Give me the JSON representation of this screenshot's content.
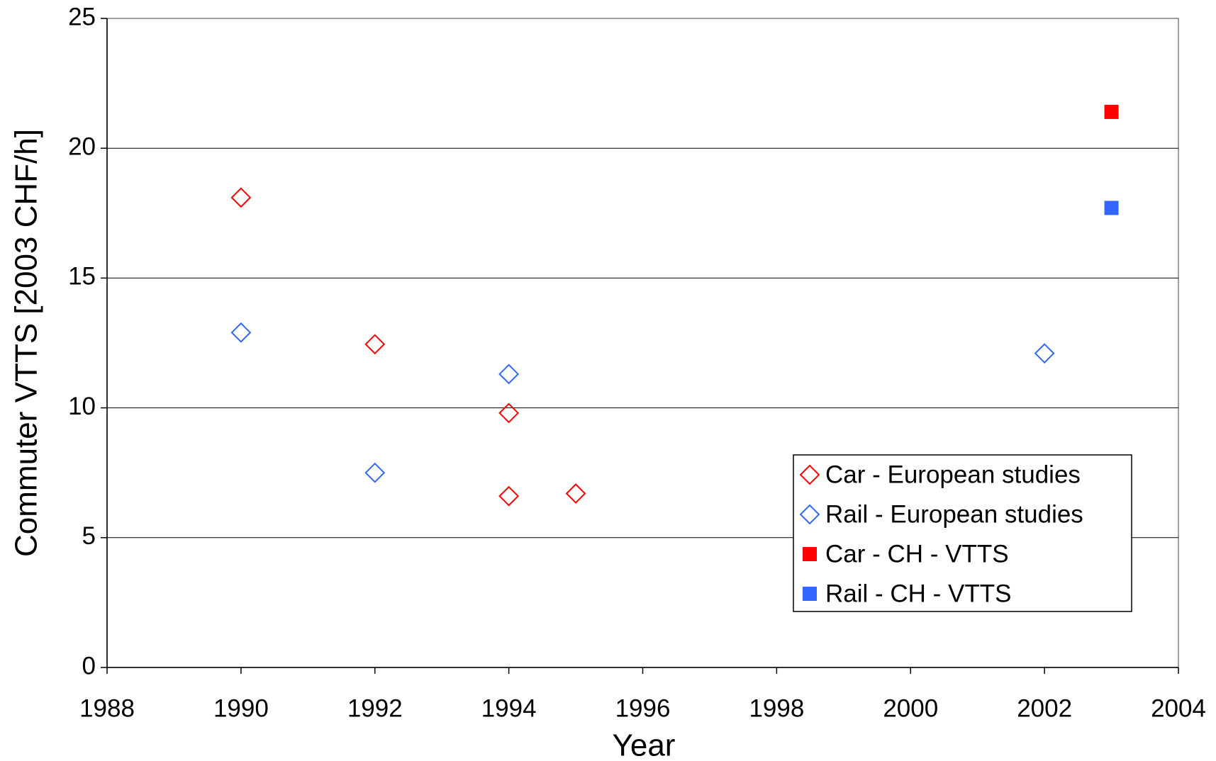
{
  "chart_data": {
    "type": "scatter",
    "x_label": "Year",
    "y_label": "Commuter VTTS [2003 CHF/h]",
    "xlim": [
      1988,
      2004
    ],
    "xticks": [
      1988,
      1990,
      1992,
      1994,
      1996,
      1998,
      2000,
      2002,
      2004
    ],
    "ylim": [
      0,
      25
    ],
    "yticks": [
      0,
      5,
      10,
      15,
      20,
      25
    ],
    "grid": true,
    "legend": "lower right",
    "series": [
      {
        "name": "Car - European studies",
        "color": "#ff0000",
        "marker": "diamond-open",
        "x": [
          1990,
          1992,
          1994,
          1994,
          1995
        ],
        "values": [
          18.1,
          12.45,
          9.8,
          6.6,
          6.7
        ]
      },
      {
        "name": "Rail - European studies",
        "color": "#3366ff",
        "marker": "diamond-open",
        "x": [
          1990,
          1992,
          1994,
          2002
        ],
        "values": [
          12.9,
          7.5,
          11.3,
          12.1
        ]
      },
      {
        "name": "Car - CH - VTTS",
        "color": "#ff0000",
        "marker": "square-filled",
        "x": [
          2003
        ],
        "values": [
          21.4
        ]
      },
      {
        "name": "Rail - CH - VTTS",
        "color": "#3366ff",
        "marker": "square-filled",
        "x": [
          2003
        ],
        "values": [
          17.7
        ]
      }
    ]
  }
}
